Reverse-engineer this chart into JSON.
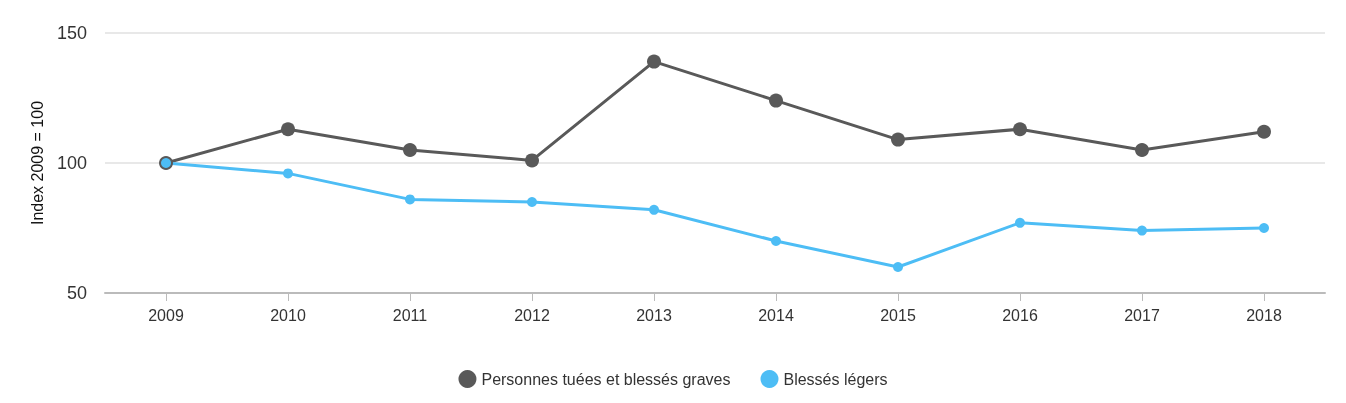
{
  "chart_data": {
    "type": "line",
    "ylabel": "Index 2009 = 100",
    "categories": [
      "2009",
      "2010",
      "2011",
      "2012",
      "2013",
      "2014",
      "2015",
      "2016",
      "2017",
      "2018"
    ],
    "series": [
      {
        "name": "Personnes tuées et blessés graves",
        "color": "#595959",
        "values": [
          100,
          113,
          105,
          101,
          139,
          124,
          109,
          113,
          105,
          112
        ]
      },
      {
        "name": "Blessés légers",
        "color": "#4dbdf5",
        "values": [
          100,
          96,
          86,
          85,
          82,
          70,
          60,
          77,
          74,
          75
        ]
      }
    ],
    "ylim": [
      50,
      150
    ],
    "yticks": [
      50,
      100,
      150
    ],
    "grid": "y",
    "legend": "bottom",
    "marker": "circle",
    "line_style": "solid"
  }
}
